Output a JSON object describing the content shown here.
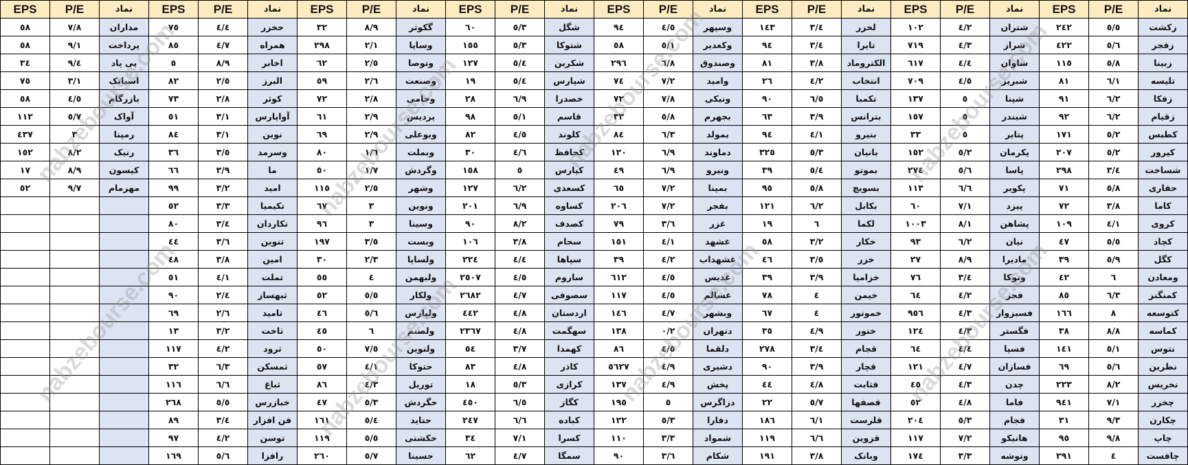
{
  "headers": {
    "symbol": "نماد",
    "pe": "P/E",
    "eps": "EPS"
  },
  "watermark": "nabzebourse.com",
  "colors": {
    "header_bg": "#FDEBC2",
    "symbol_bg": "#DCE3F1",
    "border": "#000000"
  },
  "groups": [
    [
      [
        "زکشت",
        "٥/٥",
        "٢٤٢"
      ],
      [
        "زفجر",
        "٥/٦",
        "٤٢٢"
      ],
      [
        "زبینا",
        "٥/٨",
        "١١٥"
      ],
      [
        "تلیسه",
        "٦/١",
        "٨١"
      ],
      [
        "زفکا",
        "٦/٢",
        "٩١"
      ],
      [
        "زقیام",
        "٦/٢",
        "٩٢"
      ],
      [
        "کطبس",
        "٥/٢",
        "١٧١"
      ],
      [
        "کپرور",
        "٥/٢",
        "٢٠٧"
      ],
      [
        "شساخت",
        "٣/٤",
        "٢٩٨"
      ],
      [
        "حفاری",
        "٥/٨",
        "٧١"
      ],
      [
        "کاما",
        "٣/٨",
        "٧٢"
      ],
      [
        "کروی",
        "٤/١",
        "١٠٩"
      ],
      [
        "کچاد",
        "٥/٥",
        "٤٧"
      ],
      [
        "کگل",
        "٥/٩",
        "٣٩"
      ],
      [
        "ومعادن",
        "٦",
        "٤٢"
      ],
      [
        "کمنگنز",
        "٦/٣",
        "٨٥"
      ],
      [
        "کتوسعه",
        "٨",
        "١٦٦"
      ],
      [
        "کماسه",
        "٨/٨",
        "٣٨"
      ],
      [
        "نتوس",
        "٥/١",
        "١٤١"
      ],
      [
        "نطرین",
        "٥/٦",
        "٦٩"
      ],
      [
        "نخریس",
        "٨/٢",
        "٢٢٣"
      ],
      [
        "چخزر",
        "٧/١",
        "٩٤١"
      ],
      [
        "چکارن",
        "٩/٣",
        "٣١"
      ],
      [
        "چاپ",
        "٩/٨",
        "٩٥"
      ],
      [
        "چافست",
        "٤",
        "٢٩١"
      ]
    ],
    [
      [
        "شتران",
        "٤/٢",
        "١٠٢"
      ],
      [
        "شراز",
        "٤/٣",
        "٧١٩"
      ],
      [
        "شاوان",
        "٤/٤",
        "٦١٧"
      ],
      [
        "شبریز",
        "٤/٥",
        "٧٠٩"
      ],
      [
        "شپنا",
        "٥",
        "١٣٧"
      ],
      [
        "شبندر",
        "٥",
        "١٥٧"
      ],
      [
        "پتایر",
        "٥",
        "٣٣"
      ],
      [
        "پکرمان",
        "٥/٢",
        "١٥٢"
      ],
      [
        "پاسا",
        "٥/٦",
        "٢٧٤"
      ],
      [
        "پکویر",
        "٦/٦",
        "١١٣"
      ],
      [
        "پیزد",
        "٧/١",
        "٦٠"
      ],
      [
        "پشاهن",
        "٨/١",
        "١٠٠٣"
      ],
      [
        "نیان",
        "٦/٢",
        "٩٣"
      ],
      [
        "مادیرا",
        "٨/٩",
        "٢٧"
      ],
      [
        "وتوکا",
        "٣/٤",
        "٧٦"
      ],
      [
        "فجر",
        "٤/٢",
        "٦٤"
      ],
      [
        "فسبزوار",
        "٤/٣",
        "٩٥٦"
      ],
      [
        "فگستر",
        "٤/٣",
        "١٢٤"
      ],
      [
        "فسپا",
        "٤/٤",
        "٦٤"
      ],
      [
        "فسازان",
        "٤/٧",
        "١٢١"
      ],
      [
        "چدن",
        "٤/٣",
        "٤٥"
      ],
      [
        "فاما",
        "٤/٨",
        "٥٢"
      ],
      [
        "فجام",
        "٥/٣",
        "٢٠٤"
      ],
      [
        "هانیکو",
        "٧/٢",
        "١١٧"
      ],
      [
        "وتوشه",
        "٣/٣",
        "١٧٤"
      ]
    ],
    [
      [
        "لخزر",
        "٣/٤",
        "١٤٣"
      ],
      [
        "تایرا",
        "٣/٤",
        "٩٤"
      ],
      [
        "الکتروماد",
        "٣/٨",
        "٨١"
      ],
      [
        "انتخاب",
        "٤/٢",
        "٢٦"
      ],
      [
        "تکمبا",
        "٦/٥",
        "٩٠"
      ],
      [
        "بترانس",
        "٣/٩",
        "٦٣"
      ],
      [
        "بنیرو",
        "٤/١",
        "٩٤"
      ],
      [
        "بانیان",
        "٥/٣",
        "٣٢٥"
      ],
      [
        "بموتو",
        "٥/٤",
        "٣٩"
      ],
      [
        "بسویچ",
        "٥/٨",
        "٩٥"
      ],
      [
        "بکابل",
        "٦/٢",
        "١٢١"
      ],
      [
        "لکما",
        "٦",
        "١٩"
      ],
      [
        "خکار",
        "٣/٢",
        "٥٨"
      ],
      [
        "خزر",
        "٣/٥",
        "٤٦"
      ],
      [
        "خزامیا",
        "٣/٩",
        "٣٩"
      ],
      [
        "خیمن",
        "٤",
        "٧٨"
      ],
      [
        "خموتور",
        "٤",
        "٦٧"
      ],
      [
        "ختور",
        "٤/٩",
        "٣٥"
      ],
      [
        "قجام",
        "٣/٤",
        "٢٧٨"
      ],
      [
        "قچار",
        "٣/٩",
        "٩٠"
      ],
      [
        "قثابت",
        "٤/٨",
        "٤٤"
      ],
      [
        "قصفها",
        "٥/٧",
        "٢٢"
      ],
      [
        "قلرست",
        "٦/١",
        "١٨٦"
      ],
      [
        "قزوین",
        "٦/٦",
        "١١٩"
      ],
      [
        "وبانک",
        "٣/٨",
        "١٩١"
      ]
    ],
    [
      [
        "وسپهر",
        "٤/٥",
        "٩٤"
      ],
      [
        "وکغدیر",
        "٥/١",
        "٥٨"
      ],
      [
        "وصندوق",
        "٦/٨",
        "٢٩٦"
      ],
      [
        "وامید",
        "٧/٢",
        "٧٤"
      ],
      [
        "ونیکی",
        "٧/٨",
        "٧٢"
      ],
      [
        "بجهرم",
        "٥/٨",
        "٣٣"
      ],
      [
        "بمولد",
        "٦/٣",
        "٨٤"
      ],
      [
        "دماوند",
        "٦/٩",
        "١٢٠"
      ],
      [
        "ونیرو",
        "٦/٩",
        "٤٩"
      ],
      [
        "بمپنا",
        "٧/٢",
        "٦٥"
      ],
      [
        "بفجر",
        "٧/٢",
        "٢٠٦"
      ],
      [
        "غزر",
        "٣/٦",
        "٧٩"
      ],
      [
        "غشهد",
        "٤/١",
        "١٥١"
      ],
      [
        "غشهداب",
        "٤/٢",
        "٣٩"
      ],
      [
        "غدیس",
        "٤/٥",
        "٦١٢"
      ],
      [
        "غسالم",
        "٤/٥",
        "١١٧"
      ],
      [
        "وبشهر",
        "٤/٧",
        "١٤٦"
      ],
      [
        "دتهران",
        "٠/٢",
        "١٣٨"
      ],
      [
        "دلقما",
        "٤/٥",
        "٨٦"
      ],
      [
        "دشیری",
        "٤/٩",
        "٥٦٢٧"
      ],
      [
        "پخش",
        "٤/٩",
        "١٣٧"
      ],
      [
        "دزاگرس",
        "٥",
        "١٩٥"
      ],
      [
        "دفارا",
        "٥/٣",
        "١٢٢"
      ],
      [
        "شمواد",
        "٣/٣",
        "١١٠"
      ],
      [
        "شکام",
        "٣/٦",
        "٩٠"
      ]
    ],
    [
      [
        "شگل",
        "٥/٣",
        "٦٠"
      ],
      [
        "شتوکا",
        "٥/٣",
        "١٥٥"
      ],
      [
        "شکربن",
        "٥/٤",
        "١٢٧"
      ],
      [
        "شپارس",
        "٥/٤",
        "١٩"
      ],
      [
        "خصدرا",
        "٦/٩",
        "٢٨"
      ],
      [
        "قاسم",
        "٥/١",
        "٩٨"
      ],
      [
        "کلوند",
        "٤/٥",
        "٨٢"
      ],
      [
        "کحافظ",
        "٤/٦",
        "٣٠"
      ],
      [
        "کپارس",
        "٥",
        "١٥٨"
      ],
      [
        "کسعدی",
        "٦/٢",
        "١٢٧"
      ],
      [
        "کساوه",
        "٦/٩",
        "٢٠١"
      ],
      [
        "کصدف",
        "٨/٢",
        "٩٠"
      ],
      [
        "سجام",
        "٣/٨",
        "١٠٦"
      ],
      [
        "سپاها",
        "٤/٤",
        "٢٢٤"
      ],
      [
        "ساروم",
        "٤/٥",
        "٢٥٠٧"
      ],
      [
        "سصوفی",
        "٤/٧",
        "٢٦٨٢"
      ],
      [
        "اردستان",
        "٤/٨",
        "٤٤٢"
      ],
      [
        "سهگمت",
        "٤/٨",
        "٢٣٦٧"
      ],
      [
        "کهمدا",
        "٣/٧",
        "٥٤"
      ],
      [
        "کاذر",
        "٤/٨",
        "٨٣"
      ],
      [
        "کرازی",
        "٥/٣",
        "١٨"
      ],
      [
        "کگاز",
        "٦/٥",
        "٤٥٠"
      ],
      [
        "کباده",
        "٦/٦",
        "٢٤٧"
      ],
      [
        "کسرا",
        "٧/١",
        "٣٤"
      ],
      [
        "سمگا",
        "٤/٧",
        "٦٢"
      ]
    ],
    [
      [
        "گکوثر",
        "٨/٩",
        "٣٢"
      ],
      [
        "وساپا",
        "٢/١",
        "٢٩٨"
      ],
      [
        "وتوصا",
        "٢/٥",
        "٦٢"
      ],
      [
        "وصنعت",
        "٢/٦",
        "٥٩"
      ],
      [
        "وجامی",
        "٢/٨",
        "٧٢"
      ],
      [
        "پردیس",
        "٢/٩",
        "٦١"
      ],
      [
        "وبوعلی",
        "٢/٩",
        "٦٩"
      ],
      [
        "وبملت",
        "١/٦",
        "٨٠"
      ],
      [
        "وگردش",
        "١/٧",
        "٥٠"
      ],
      [
        "وشهر",
        "٢/٥",
        "١١٥"
      ],
      [
        "ونوین",
        "٣",
        "٦٧"
      ],
      [
        "وسینا",
        "٣",
        "٩٦"
      ],
      [
        "وبست",
        "٣/٥",
        "١٩٧"
      ],
      [
        "ولساپا",
        "٢/٣",
        "٣٠"
      ],
      [
        "ولبهمن",
        "٤",
        "٥٥"
      ],
      [
        "ولکار",
        "٥/٥",
        "٥٢"
      ],
      [
        "ولپارس",
        "٥/٦",
        "٤٦"
      ],
      [
        "ولصنم",
        "٦",
        "٤٥"
      ],
      [
        "ولنوین",
        "٧/٥",
        "٥٠"
      ],
      [
        "حتوکا",
        "٤/١",
        "٥٧"
      ],
      [
        "توریل",
        "٤/٣",
        "٨٦"
      ],
      [
        "حگردش",
        "٥/٣",
        "٤٧"
      ],
      [
        "حتاید",
        "٥/٤",
        "١٦١"
      ],
      [
        "حکشتی",
        "٥/٥",
        "١١٩"
      ],
      [
        "حسینا",
        "٥/٧",
        "٢٦٠"
      ]
    ],
    [
      [
        "حخزر",
        "٤/٤",
        "٧٥"
      ],
      [
        "همراه",
        "٤/٧",
        "٨٥"
      ],
      [
        "اخابر",
        "٨/٩",
        "٥"
      ],
      [
        "البرز",
        "٢/٥",
        "٨٢"
      ],
      [
        "کوثر",
        "٢/٨",
        "٧٣"
      ],
      [
        "آواپارس",
        "٣/١",
        "٥١"
      ],
      [
        "نوین",
        "٣/١",
        "٨٤"
      ],
      [
        "وسرمد",
        "٣/٥",
        "٣٦"
      ],
      [
        "ما",
        "٣/٩",
        "٦٦"
      ],
      [
        "امید",
        "٣/٢",
        "٩٩"
      ],
      [
        "تکیمیا",
        "٣/٣",
        "٥٢"
      ],
      [
        "تکاردان",
        "٣/٤",
        "٨٠"
      ],
      [
        "تنوین",
        "٣/٦",
        "٤٤"
      ],
      [
        "امین",
        "٣/٨",
        "٤٨"
      ],
      [
        "تملت",
        "٤/١",
        "٥١"
      ],
      [
        "ثبهساز",
        "٢/٤",
        "٩٠"
      ],
      [
        "ثامید",
        "٢/٦",
        "٦٩"
      ],
      [
        "ثاخت",
        "٣/٢",
        "١٣"
      ],
      [
        "ثرود",
        "٤/٢",
        "١١٧"
      ],
      [
        "ثمسکن",
        "٦/٣",
        "٣٢"
      ],
      [
        "ثباغ",
        "٦/٦",
        "١١٦"
      ],
      [
        "خبازرس",
        "٥/٥",
        "٢٦٨"
      ],
      [
        "فن افزار",
        "٣/٤",
        "٨٩"
      ],
      [
        "توسن",
        "٤/٢",
        "٩٧"
      ],
      [
        "رافزا",
        "٥/٦",
        "١٦٩"
      ]
    ],
    [
      [
        "مداران",
        "٧/٨",
        "٥٨"
      ],
      [
        "پرداخت",
        "٩/١",
        "٥٨"
      ],
      [
        "پی پاد",
        "٩/٤",
        "٣٤"
      ],
      [
        "اسیاتک",
        "٣/١",
        "٧٥"
      ],
      [
        "بازرگام",
        "٤/٥",
        "٥٨"
      ],
      [
        "آواک",
        "٥/٧",
        "١١٢"
      ],
      [
        "رمپنا",
        "٣",
        "٤٣٧"
      ],
      [
        "رنیک",
        "٨/٢",
        "١٥٢"
      ],
      [
        "کیسون",
        "٨/٩",
        "١٧"
      ],
      [
        "مهرمام",
        "٩/٧",
        "٥٢"
      ]
    ]
  ]
}
